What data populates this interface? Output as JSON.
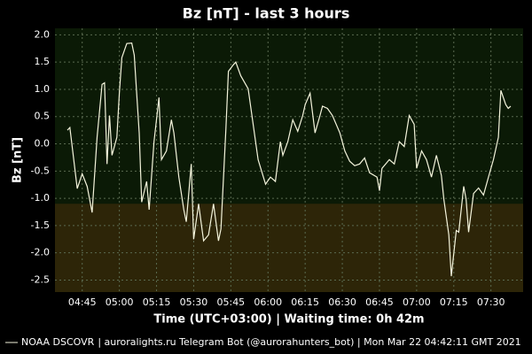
{
  "chart_data": {
    "type": "line",
    "title": "Bz [nT] - last 3 hours",
    "x_label": "Time (UTC+03:00) | Waiting time: 0h 42m",
    "y_label": "Bz [nT]",
    "footer": "| auroralights.ru Telegram Bot (@aurorahunters_bot) | Mon Mar 22 04:42:11 GMT 2021",
    "x": [
      "04:39",
      "04:40",
      "04:43",
      "04:45",
      "04:47",
      "04:49",
      "04:51",
      "04:53",
      "04:54",
      "04:55",
      "04:56",
      "04:57",
      "04:59",
      "05:00",
      "05:01",
      "05:03",
      "05:05",
      "05:06",
      "05:08",
      "05:09",
      "05:11",
      "05:12",
      "05:14",
      "05:16",
      "05:17",
      "05:19",
      "05:21",
      "05:22",
      "05:24",
      "05:26",
      "05:27",
      "05:29",
      "05:30",
      "05:32",
      "05:34",
      "05:36",
      "05:38",
      "05:40",
      "05:41",
      "05:43",
      "05:44",
      "05:46",
      "05:47",
      "05:49",
      "05:52",
      "05:54",
      "05:56",
      "05:59",
      "06:01",
      "06:03",
      "06:05",
      "06:06",
      "06:08",
      "06:10",
      "06:12",
      "06:14",
      "06:15",
      "06:17",
      "06:19",
      "06:21",
      "06:22",
      "06:24",
      "06:26",
      "06:29",
      "06:31",
      "06:33",
      "06:35",
      "06:37",
      "06:39",
      "06:41",
      "06:44",
      "06:45",
      "06:46",
      "06:49",
      "06:51",
      "06:53",
      "06:55",
      "06:57",
      "06:59",
      "07:00",
      "07:02",
      "07:04",
      "07:06",
      "07:08",
      "07:10",
      "07:11",
      "07:13",
      "07:14",
      "07:16",
      "07:17",
      "07:19",
      "07:20",
      "07:21",
      "07:23",
      "07:25",
      "07:27",
      "07:29",
      "07:31",
      "07:33",
      "07:34",
      "07:36",
      "07:37",
      "07:38"
    ],
    "series": [
      {
        "name": "NOAA DSCOVR",
        "color": "#f4f4dc",
        "values": [
          0.25,
          0.3,
          -0.82,
          -0.55,
          -0.78,
          -1.26,
          0.12,
          1.09,
          1.12,
          -0.37,
          0.52,
          -0.21,
          0.12,
          0.93,
          1.58,
          1.84,
          1.85,
          1.63,
          0.2,
          -1.07,
          -0.69,
          -1.21,
          0.04,
          0.85,
          -0.29,
          -0.13,
          0.44,
          0.2,
          -0.61,
          -1.21,
          -1.43,
          -0.37,
          -1.75,
          -1.1,
          -1.78,
          -1.67,
          -1.1,
          -1.78,
          -1.56,
          0.28,
          1.33,
          1.45,
          1.5,
          1.25,
          1.01,
          0.36,
          -0.29,
          -0.74,
          -0.61,
          -0.69,
          0.04,
          -0.21,
          0.04,
          0.44,
          0.23,
          0.52,
          0.72,
          0.93,
          0.2,
          0.52,
          0.69,
          0.65,
          0.52,
          0.2,
          -0.13,
          -0.32,
          -0.4,
          -0.37,
          -0.26,
          -0.53,
          -0.61,
          -0.86,
          -0.45,
          -0.29,
          -0.37,
          0.04,
          -0.05,
          0.52,
          0.36,
          -0.45,
          -0.13,
          -0.29,
          -0.61,
          -0.21,
          -0.58,
          -1.02,
          -1.67,
          -2.43,
          -1.59,
          -1.62,
          -0.78,
          -1.02,
          -1.62,
          -0.91,
          -0.81,
          -0.94,
          -0.61,
          -0.29,
          0.12,
          0.98,
          0.72,
          0.65,
          0.69
        ]
      }
    ],
    "xlim": [
      "04:34",
      "07:43"
    ],
    "xticks": [
      "04:45",
      "05:00",
      "05:15",
      "05:30",
      "05:45",
      "06:00",
      "06:15",
      "06:30",
      "06:45",
      "07:00",
      "07:15",
      "07:30"
    ],
    "ylim": [
      -2.72,
      2.12
    ],
    "yticks": [
      {
        "value": 2,
        "label": "2.0"
      },
      1.5,
      {
        "value": 1,
        "label": "1.0"
      },
      0.5,
      {
        "value": 0,
        "label": "0.0"
      },
      -0.5,
      {
        "value": -1,
        "label": "-1.0"
      },
      -1.5,
      {
        "value": -2,
        "label": "-2.0"
      },
      -2.5
    ],
    "grid": true,
    "plot_color": "#0b1a06",
    "bands": [
      {
        "from": -1.1,
        "color": "#2d2508"
      }
    ]
  }
}
